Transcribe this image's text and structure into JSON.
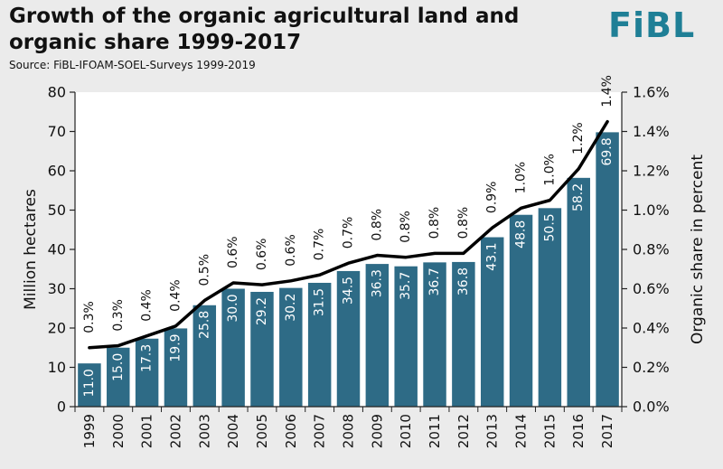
{
  "header": {
    "title": "Growth of the organic agricultural land and organic share 1999-2017",
    "source": "Source: FiBL-IFOAM-SOEL-Surveys 1999-2019",
    "logo": "FiBL"
  },
  "colors": {
    "bar": "#2e6b86",
    "line": "#000000",
    "background": "#ebebeb",
    "logo": "#1f7f96"
  },
  "chart_data": {
    "type": "bar",
    "title": "Growth of the organic agricultural land and organic share 1999-2017",
    "categories": [
      "1999",
      "2000",
      "2001",
      "2002",
      "2003",
      "2004",
      "2005",
      "2006",
      "2007",
      "2008",
      "2009",
      "2010",
      "2011",
      "2012",
      "2013",
      "2014",
      "2015",
      "2016",
      "2017"
    ],
    "series": [
      {
        "name": "Million hectares",
        "type": "bar",
        "axis": "left",
        "values": [
          11.0,
          15.0,
          17.3,
          19.9,
          25.8,
          30.0,
          29.2,
          30.2,
          31.5,
          34.5,
          36.3,
          35.7,
          36.7,
          36.8,
          43.1,
          48.8,
          50.5,
          58.2,
          69.8
        ],
        "labels": [
          "11.0",
          "15.0",
          "17.3",
          "19.9",
          "25.8",
          "30.0",
          "29.2",
          "30.2",
          "31.5",
          "34.5",
          "36.3",
          "35.7",
          "36.7",
          "36.8",
          "43.1",
          "48.8",
          "50.5",
          "58.2",
          "69.8"
        ]
      },
      {
        "name": "Organic share in percent",
        "type": "line",
        "axis": "right",
        "values": [
          0.3,
          0.31,
          0.36,
          0.41,
          0.54,
          0.63,
          0.62,
          0.64,
          0.67,
          0.73,
          0.77,
          0.76,
          0.78,
          0.78,
          0.91,
          1.01,
          1.05,
          1.21,
          1.45
        ],
        "labels": [
          "0.3%",
          "0.3%",
          "0.4%",
          "0.4%",
          "0.5%",
          "0.6%",
          "0.6%",
          "0.6%",
          "0.7%",
          "0.7%",
          "0.8%",
          "0.8%",
          "0.8%",
          "0.8%",
          "0.9%",
          "1.0%",
          "1.0%",
          "1.2%",
          "1.4%"
        ]
      }
    ],
    "ylabel": "Million hectares",
    "ylim": [
      0,
      80
    ],
    "yticks": [
      "0",
      "10",
      "20",
      "30",
      "40",
      "50",
      "60",
      "70",
      "80"
    ],
    "y2label": "Organic share in percent",
    "y2lim": [
      0,
      1.6
    ],
    "y2ticks": [
      "0.0%",
      "0.2%",
      "0.4%",
      "0.6%",
      "0.8%",
      "1.0%",
      "1.2%",
      "1.4%",
      "1.6%"
    ],
    "grid": false,
    "legend": "none"
  }
}
